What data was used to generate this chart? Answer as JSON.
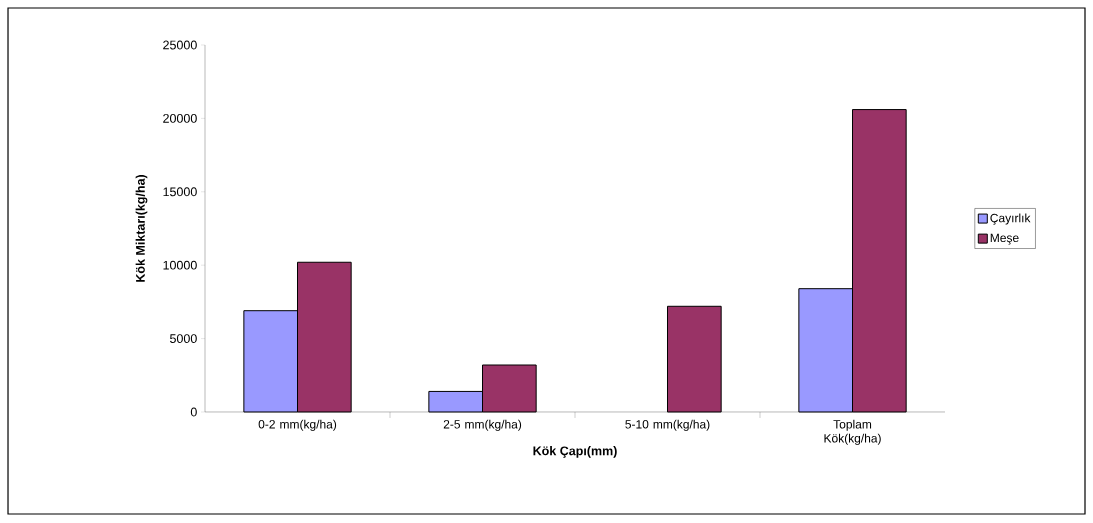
{
  "chart_data": {
    "type": "bar",
    "xlabel": "Kök Çapı(mm)",
    "ylabel": "Kök Miktarı(kg/ha)",
    "categories": [
      "0-2 mm(kg/ha)",
      "2-5 mm(kg/ha)",
      "5-10 mm(kg/ha)",
      "Toplam Kök(kg/ha)"
    ],
    "series": [
      {
        "name": "Çayırlık",
        "color": "#9999ff",
        "values": [
          6900,
          1400,
          null,
          8400
        ]
      },
      {
        "name": "Meşe",
        "color": "#993366",
        "values": [
          10200,
          3200,
          7200,
          20600
        ]
      }
    ],
    "ylim": [
      0,
      25000
    ],
    "yticks": [
      0,
      5000,
      10000,
      15000,
      20000,
      25000
    ],
    "grid": false,
    "legend": "right"
  }
}
